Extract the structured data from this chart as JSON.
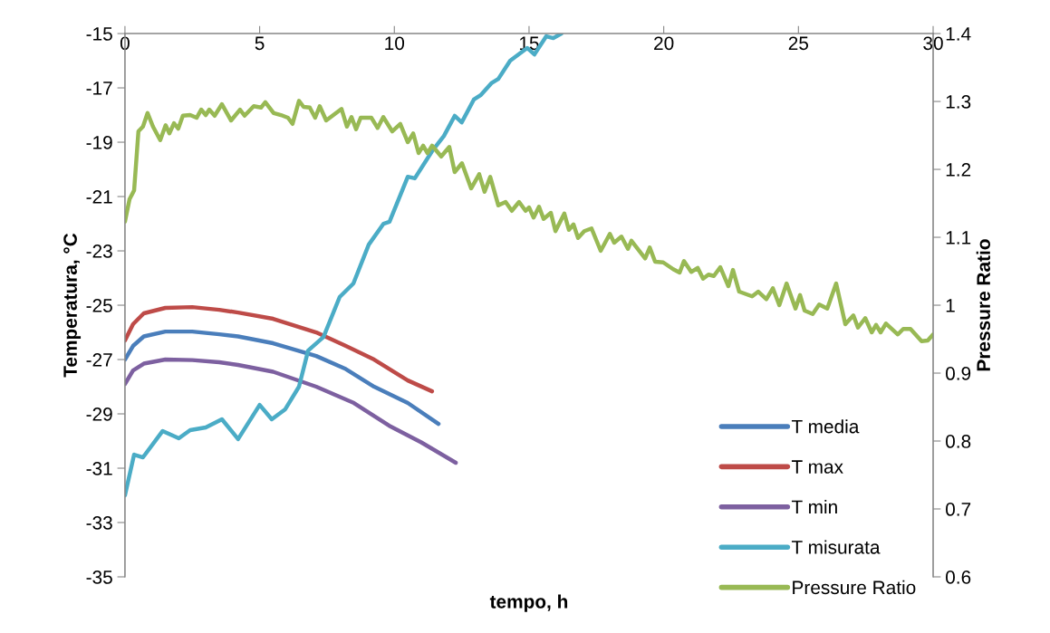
{
  "chart_data": {
    "type": "line",
    "xlabel": "tempo, h",
    "ylabel": "Temperatura, °C",
    "y2label": "Pressure Ratio",
    "xlim": [
      0,
      30
    ],
    "xticks": [
      0,
      5,
      10,
      15,
      20,
      25,
      30
    ],
    "ylim": [
      -35,
      -15
    ],
    "yticks": [
      -35,
      -33,
      -31,
      -29,
      -27,
      -25,
      -23,
      -21,
      -19,
      -17,
      -15
    ],
    "y2lim": [
      0.6,
      1.4
    ],
    "y2ticks": [
      0.6,
      0.7,
      0.8,
      0.9,
      1,
      1.1,
      1.2,
      1.3,
      1.4
    ],
    "grid": false,
    "legend": "bottom right",
    "marker": "none",
    "line_style": "solid",
    "series": [
      {
        "name": "T media",
        "color": "#4a7ebb",
        "x": [
          0,
          0.3,
          0.7,
          1.5,
          2.5,
          3.5,
          4.2,
          5.5,
          7.1,
          8.2,
          9.25,
          10.5,
          11.64
        ],
        "values": [
          -27.0,
          -26.5,
          -26.15,
          -25.97,
          -25.97,
          -26.07,
          -26.15,
          -26.4,
          -26.87,
          -27.35,
          -28.0,
          -28.6,
          -29.37
        ]
      },
      {
        "name": "T max",
        "color": "#be4b48",
        "x": [
          0,
          0.3,
          0.7,
          1.5,
          2.5,
          3.5,
          4.2,
          5.5,
          7.1,
          8.2,
          9.25,
          10.5,
          11.4
        ],
        "values": [
          -26.3,
          -25.7,
          -25.3,
          -25.1,
          -25.07,
          -25.17,
          -25.27,
          -25.5,
          -26.0,
          -26.5,
          -27.0,
          -27.77,
          -28.17
        ]
      },
      {
        "name": "T min",
        "color": "#7d60a0",
        "x": [
          0,
          0.3,
          0.7,
          1.5,
          2.5,
          3.5,
          4.2,
          5.5,
          7.1,
          8.5,
          9.8,
          11,
          12.28
        ],
        "values": [
          -27.9,
          -27.4,
          -27.15,
          -27.0,
          -27.02,
          -27.1,
          -27.2,
          -27.45,
          -28.0,
          -28.6,
          -29.43,
          -30.05,
          -30.8
        ]
      },
      {
        "name": "T misurata",
        "color": "#4bacc6",
        "x": [
          0,
          0.34,
          0.67,
          1.4,
          2.0,
          2.42,
          3.0,
          3.6,
          4.2,
          5.0,
          5.45,
          5.95,
          6.46,
          6.8,
          7.37,
          7.97,
          8.48,
          9.05,
          9.6,
          9.82,
          10.5,
          10.76,
          11.4,
          11.84,
          12.24,
          12.5,
          12.95,
          13.2,
          13.6,
          13.86,
          14.3,
          14.93,
          15.2,
          15.64,
          15.9,
          16.2
        ],
        "values": [
          -32.0,
          -30.5,
          -30.6,
          -29.63,
          -29.9,
          -29.6,
          -29.5,
          -29.2,
          -29.93,
          -28.67,
          -29.2,
          -28.83,
          -28.0,
          -26.67,
          -26.17,
          -24.7,
          -24.2,
          -22.77,
          -22.0,
          -21.93,
          -20.27,
          -20.33,
          -19.33,
          -18.77,
          -18.03,
          -18.27,
          -17.43,
          -17.27,
          -16.83,
          -16.67,
          -16.0,
          -15.53,
          -15.77,
          -15.1,
          -15.17,
          -15.0
        ]
      },
      {
        "name": "Pressure Ratio",
        "color": "#98b954",
        "axis": "y2",
        "x": [
          0,
          0.17,
          0.34,
          0.5,
          0.67,
          0.84,
          1.04,
          1.31,
          1.51,
          1.65,
          1.82,
          1.98,
          2.15,
          2.42,
          2.66,
          2.83,
          3.0,
          3.13,
          3.33,
          3.6,
          3.94,
          4.27,
          4.44,
          4.78,
          5.05,
          5.21,
          5.52,
          5.79,
          6.05,
          6.22,
          6.46,
          6.63,
          6.86,
          7.06,
          7.23,
          7.47,
          8.04,
          8.24,
          8.41,
          8.58,
          8.75,
          9.15,
          9.38,
          9.59,
          9.92,
          10.22,
          10.5,
          10.7,
          10.9,
          11.07,
          11.23,
          11.4,
          11.74,
          12.04,
          12.24,
          12.51,
          12.85,
          13.15,
          13.35,
          13.56,
          13.86,
          14.13,
          14.36,
          14.63,
          14.87,
          15.0,
          15.17,
          15.37,
          15.54,
          15.81,
          15.98,
          16.31,
          16.48,
          16.65,
          16.82,
          17.05,
          17.32,
          17.66,
          18.0,
          18.16,
          18.43,
          18.67,
          18.8,
          19.31,
          19.48,
          19.68,
          19.98,
          20.35,
          20.59,
          20.75,
          21.02,
          21.26,
          21.46,
          21.66,
          21.86,
          22.1,
          22.4,
          22.57,
          22.8,
          23.28,
          23.51,
          23.81,
          24.05,
          24.29,
          24.56,
          24.89,
          25.06,
          25.23,
          25.53,
          25.77,
          26.07,
          26.4,
          26.74,
          27.04,
          27.21,
          27.48,
          27.72,
          27.88,
          28.05,
          28.25,
          28.69,
          28.89,
          29.16,
          29.57,
          29.8,
          30.0
        ],
        "values": [
          1.123,
          1.156,
          1.169,
          1.256,
          1.263,
          1.283,
          1.263,
          1.243,
          1.265,
          1.253,
          1.268,
          1.26,
          1.279,
          1.28,
          1.276,
          1.288,
          1.28,
          1.288,
          1.279,
          1.296,
          1.272,
          1.288,
          1.279,
          1.293,
          1.291,
          1.299,
          1.283,
          1.28,
          1.276,
          1.267,
          1.301,
          1.292,
          1.291,
          1.276,
          1.293,
          1.272,
          1.289,
          1.263,
          1.277,
          1.259,
          1.276,
          1.276,
          1.261,
          1.277,
          1.256,
          1.267,
          1.24,
          1.253,
          1.224,
          1.235,
          1.224,
          1.235,
          1.219,
          1.233,
          1.196,
          1.209,
          1.172,
          1.193,
          1.167,
          1.189,
          1.147,
          1.152,
          1.139,
          1.152,
          1.139,
          1.144,
          1.129,
          1.145,
          1.127,
          1.136,
          1.109,
          1.135,
          1.111,
          1.119,
          1.099,
          1.109,
          1.113,
          1.08,
          1.105,
          1.092,
          1.101,
          1.083,
          1.095,
          1.069,
          1.085,
          1.064,
          1.063,
          1.053,
          1.048,
          1.065,
          1.049,
          1.055,
          1.039,
          1.045,
          1.043,
          1.056,
          1.028,
          1.052,
          1.02,
          1.013,
          1.02,
          1.009,
          1.025,
          1.0,
          1.032,
          0.995,
          1.015,
          0.992,
          0.987,
          1.001,
          0.995,
          1.032,
          0.972,
          0.985,
          0.967,
          0.981,
          0.96,
          0.971,
          0.96,
          0.973,
          0.957,
          0.965,
          0.965,
          0.947,
          0.948,
          0.957
        ]
      }
    ]
  }
}
